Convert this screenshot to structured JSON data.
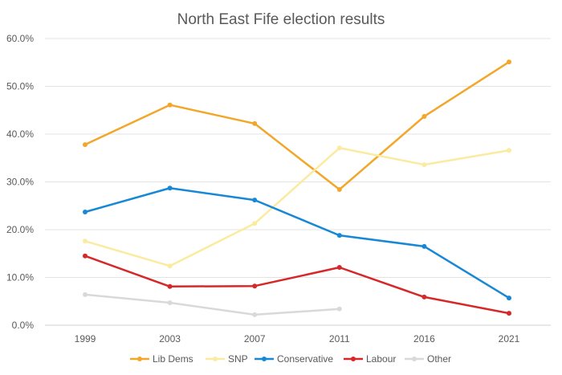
{
  "chart_data": {
    "type": "line",
    "title": "North East Fife election results",
    "xlabel": "",
    "ylabel": "",
    "x": [
      "1999",
      "2003",
      "2007",
      "2011",
      "2016",
      "2021"
    ],
    "ylim": [
      0,
      60
    ],
    "yticks": [
      "0.0%",
      "10.0%",
      "20.0%",
      "30.0%",
      "40.0%",
      "50.0%",
      "60.0%"
    ],
    "grid": true,
    "legend_position": "bottom",
    "series": [
      {
        "name": "Lib Dems",
        "color": "#F2A72B",
        "values": [
          37.8,
          46.1,
          42.2,
          28.4,
          43.7,
          55.1
        ]
      },
      {
        "name": "SNP",
        "color": "#FAEBA0",
        "values": [
          17.6,
          12.4,
          21.3,
          37.1,
          33.6,
          36.6
        ]
      },
      {
        "name": "Conservative",
        "color": "#1788D6",
        "values": [
          23.7,
          28.7,
          26.2,
          18.8,
          16.5,
          5.7
        ]
      },
      {
        "name": "Labour",
        "color": "#D62828",
        "values": [
          14.5,
          8.1,
          8.2,
          12.1,
          5.9,
          2.5
        ]
      },
      {
        "name": "Other",
        "color": "#D9D9D9",
        "values": [
          6.4,
          4.7,
          2.2,
          3.4,
          null,
          null
        ]
      }
    ]
  }
}
